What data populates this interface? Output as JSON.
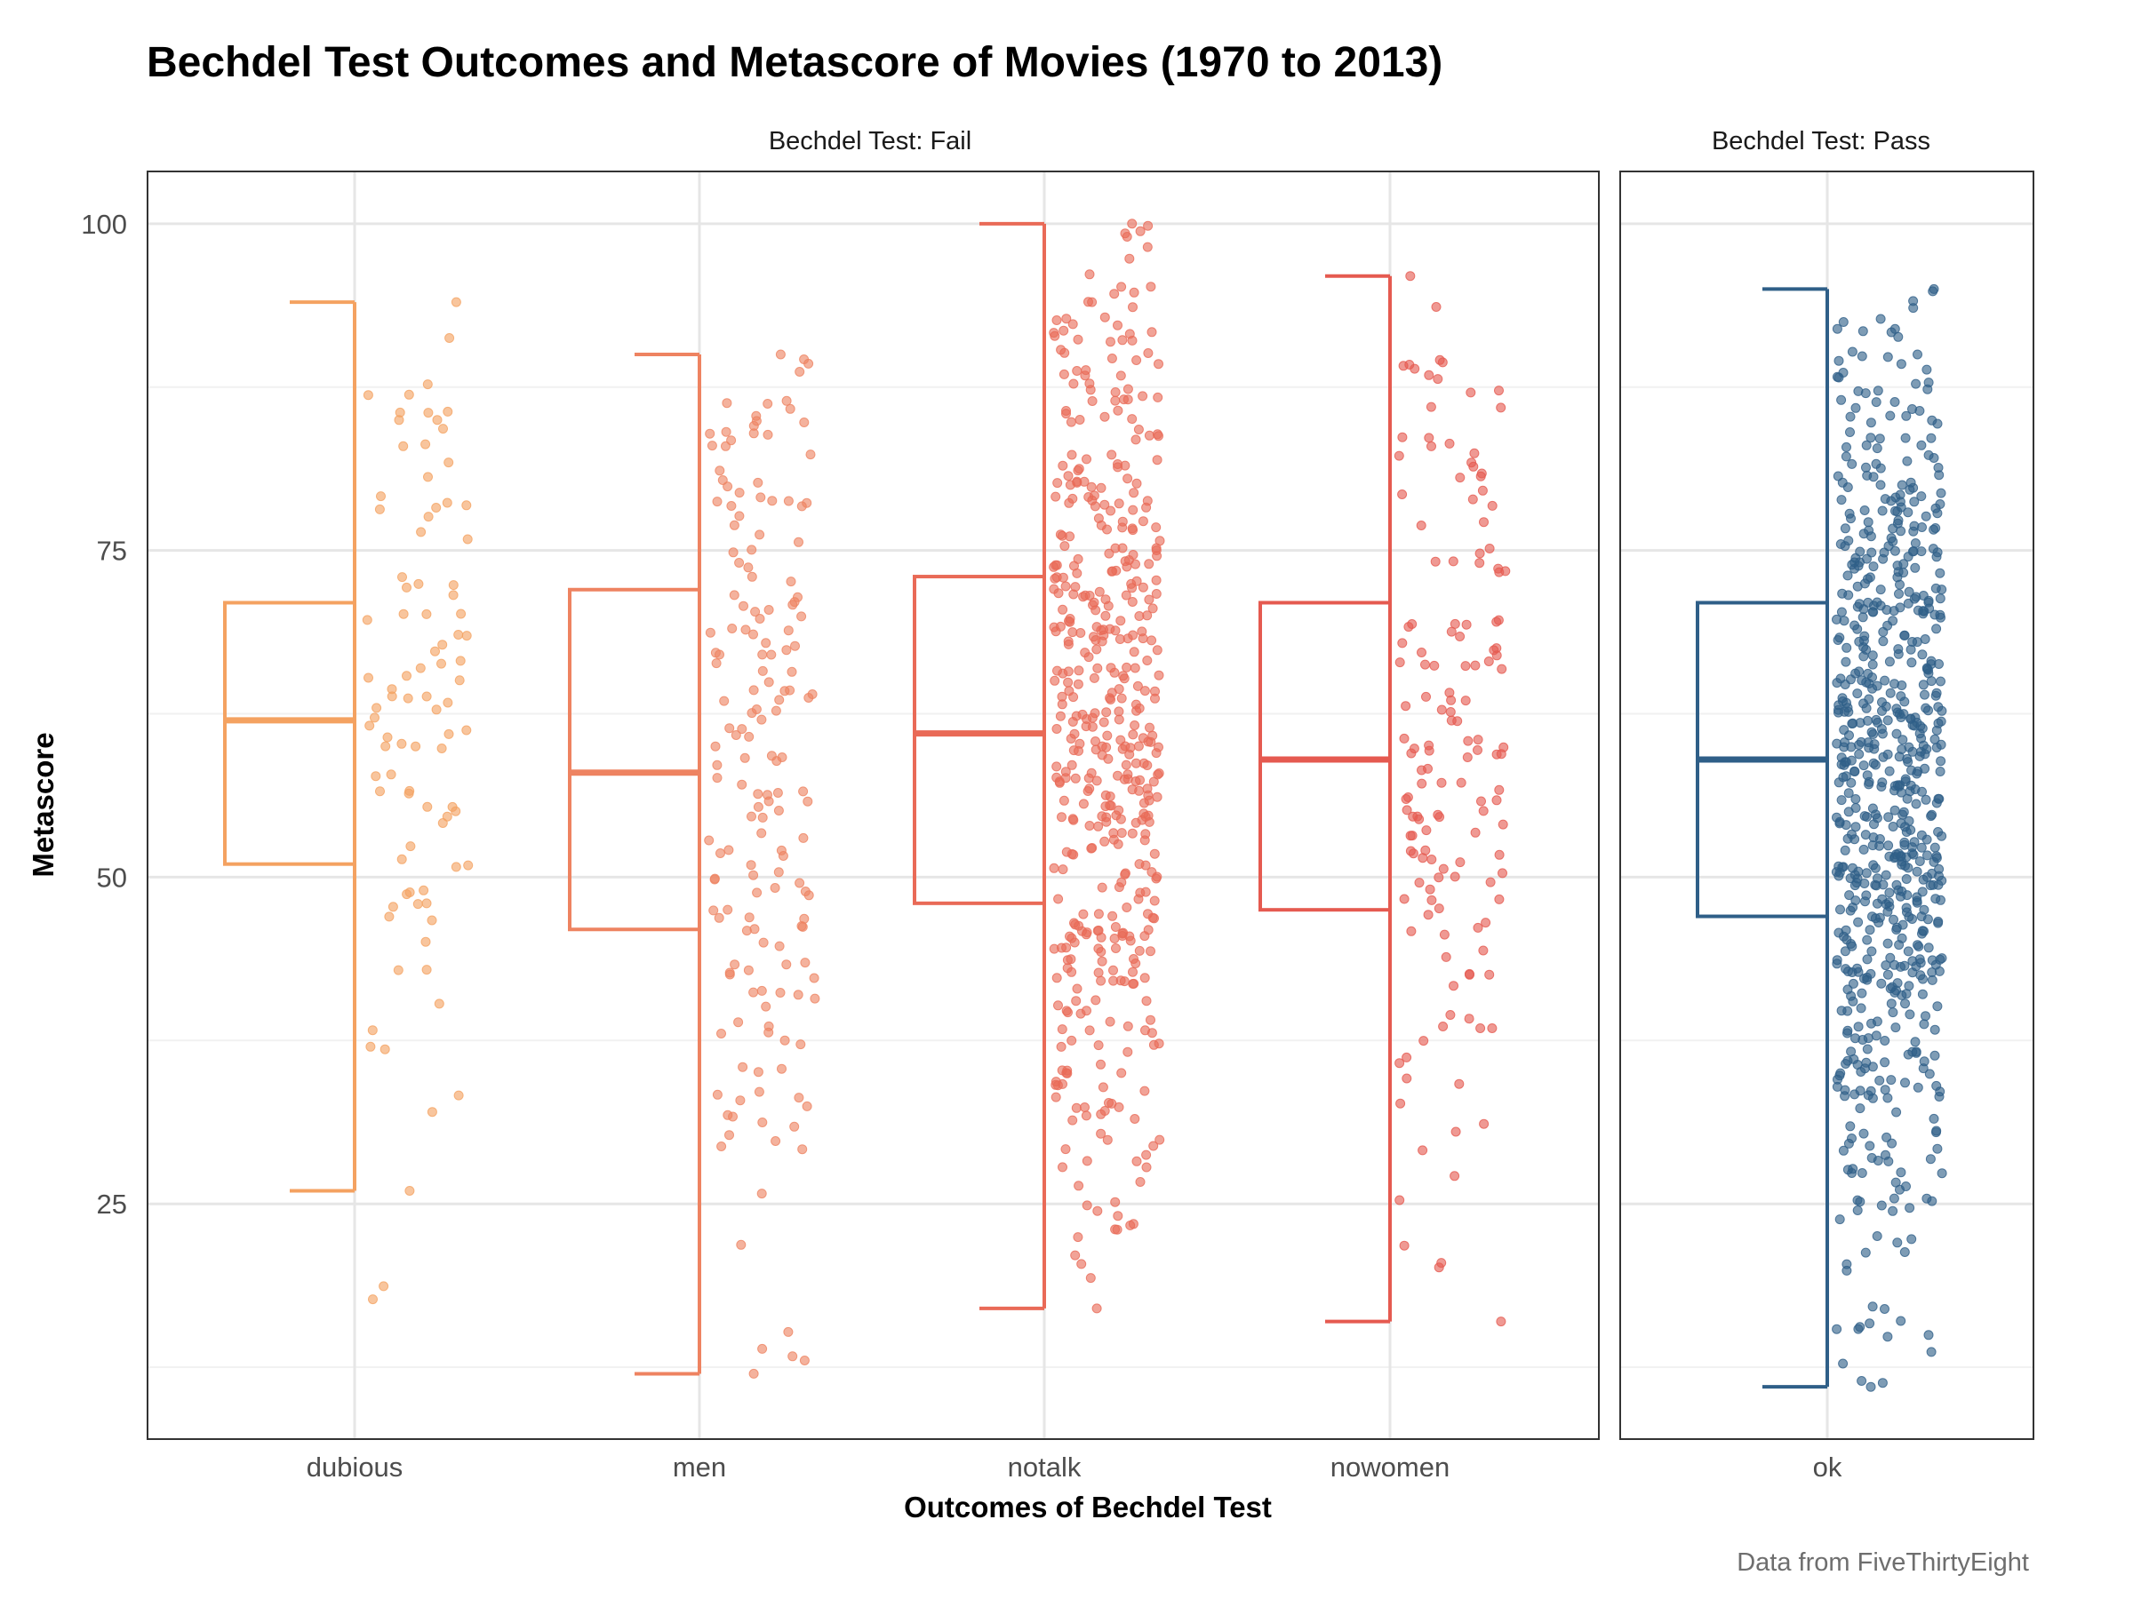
{
  "chart_data": {
    "type": "boxplot-with-jittered-points",
    "title": "Bechdel Test Outcomes and Metascore of Movies (1970 to 2013)",
    "xlabel": "Outcomes of Bechdel Test",
    "ylabel": "Metascore",
    "caption": "Data from FiveThirtyEight",
    "ylim": [
      7,
      104
    ],
    "yticks": [
      25,
      50,
      75,
      100
    ],
    "grid": true,
    "legend": "none",
    "facets": [
      {
        "label": "Bechdel Test: Fail",
        "categories": [
          {
            "name": "dubious",
            "color": "#F4A261",
            "min": 26,
            "q1": 51,
            "median": 62,
            "q3": 71,
            "max": 94,
            "point_count": 90,
            "outliers": [
              18.7,
              17.7
            ]
          },
          {
            "name": "men",
            "color": "#EE8361",
            "min": 12,
            "q1": 46,
            "median": 58,
            "q3": 72,
            "max": 90,
            "point_count": 170,
            "outliers": []
          },
          {
            "name": "notalk",
            "color": "#E96A57",
            "min": 17,
            "q1": 48,
            "median": 61,
            "q3": 73,
            "max": 100,
            "point_count": 480,
            "outliers": []
          },
          {
            "name": "nowomen",
            "color": "#E55A50",
            "min": 16,
            "q1": 47.5,
            "median": 59,
            "q3": 71,
            "max": 96,
            "point_count": 150,
            "outliers": []
          }
        ]
      },
      {
        "label": "Bechdel Test: Pass",
        "categories": [
          {
            "name": "ok",
            "color": "#2F5F88",
            "min": 11,
            "q1": 47,
            "median": 59,
            "q3": 71,
            "max": 95,
            "point_count": 700,
            "outliers": []
          }
        ]
      }
    ]
  }
}
